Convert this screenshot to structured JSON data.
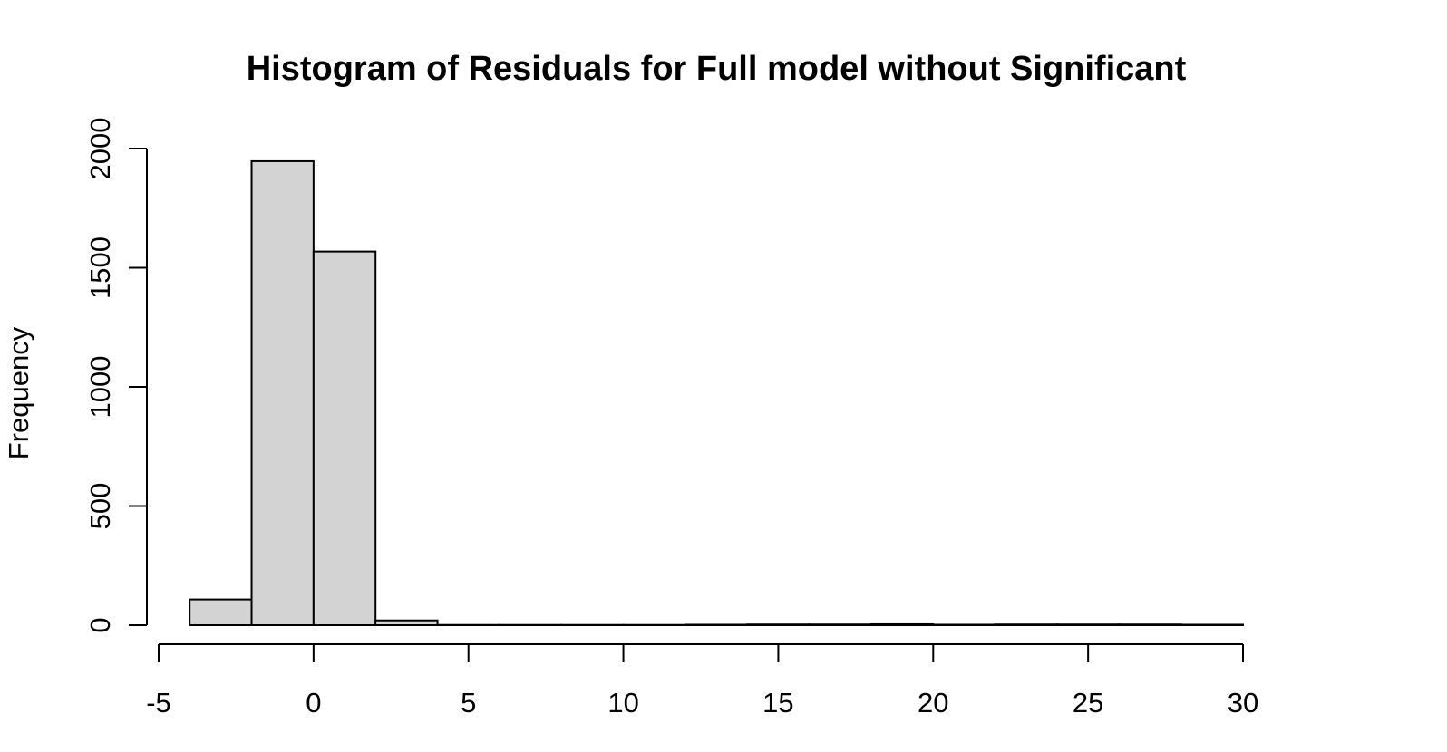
{
  "chart_data": {
    "type": "bar",
    "subtype": "histogram",
    "title": "Histogram of Residuals for Full model without Significant",
    "xlabel": "",
    "ylabel": "Frequency",
    "bin_edges": [
      -4,
      -2,
      0,
      2,
      4,
      6,
      8,
      10,
      12,
      14,
      16,
      18,
      20,
      22,
      24,
      26,
      28,
      30
    ],
    "values": [
      108,
      1947,
      1568,
      20,
      1,
      1,
      1,
      1,
      2,
      3,
      3,
      4,
      2,
      3,
      3,
      3,
      2
    ],
    "xlim": [
      -5,
      30
    ],
    "ylim": [
      0,
      2000
    ],
    "x_ticks": [
      -5,
      0,
      5,
      10,
      15,
      20,
      25,
      30
    ],
    "y_ticks": [
      0,
      500,
      1000,
      1500,
      2000
    ],
    "bar_color": "#d3d3d3",
    "edge_color": "#000000",
    "grid": false,
    "legend": "none"
  }
}
